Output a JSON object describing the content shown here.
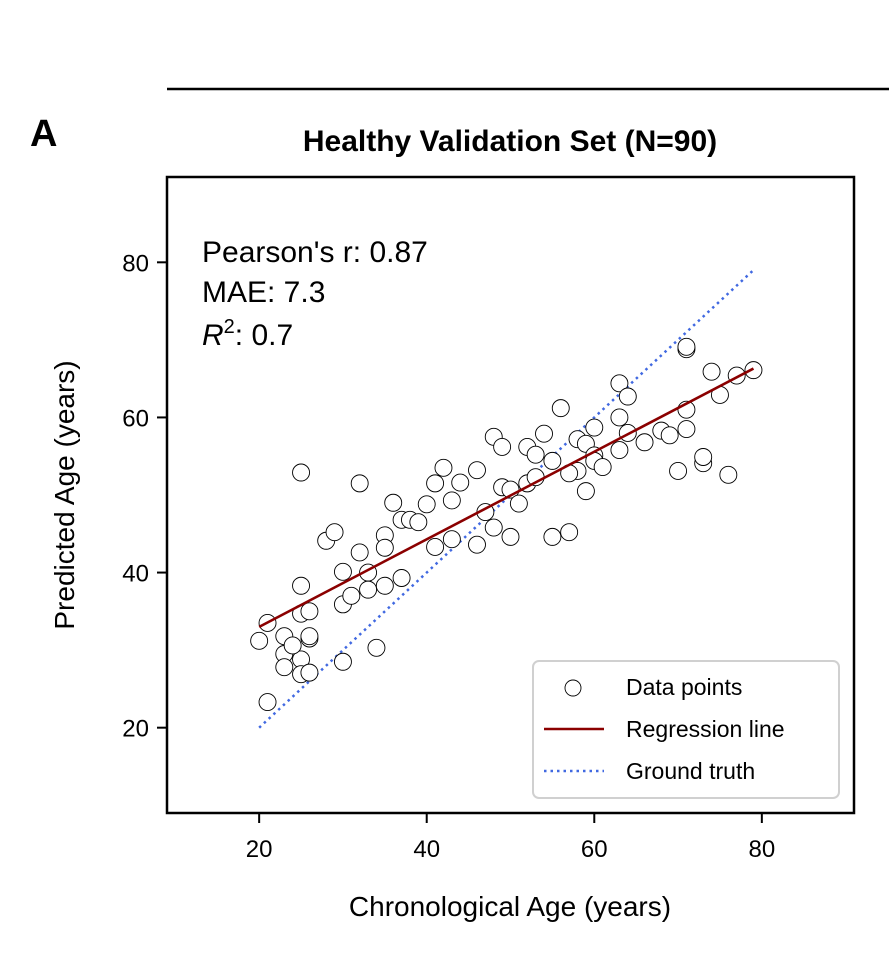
{
  "panel_label": "A",
  "chart_data": {
    "type": "scatter",
    "title": "Healthy Validation Set (N=90)",
    "xlabel": "Chronological Age (years)",
    "ylabel": "Predicted Age (years)",
    "xlim": [
      9,
      91
    ],
    "ylim": [
      9,
      91
    ],
    "xticks": [
      20,
      40,
      60,
      80
    ],
    "yticks": [
      20,
      40,
      60,
      80
    ],
    "grid": false,
    "legend_position": "lower-right",
    "annotations": {
      "pearson": "Pearson's r: 0.87",
      "mae": "MAE: 7.3",
      "r2_symbol": "R",
      "r2_exp": "2",
      "r2_value": ": 0.7"
    },
    "legend": [
      {
        "label": "Data points",
        "kind": "marker"
      },
      {
        "label": "Regression line",
        "kind": "line",
        "color": "#8b0000"
      },
      {
        "label": "Ground truth",
        "kind": "dotted",
        "color": "#4169e1"
      }
    ],
    "regression_line": {
      "x": [
        20,
        79
      ],
      "y": [
        33.0,
        66.3
      ],
      "color": "#8b0000"
    },
    "ground_truth": {
      "x": [
        20,
        79
      ],
      "y": [
        20,
        79
      ],
      "color": "#4169e1"
    },
    "series": [
      {
        "name": "Data points",
        "points": [
          [
            20.0,
            31.2
          ],
          [
            21.0,
            33.5
          ],
          [
            21.0,
            23.3
          ],
          [
            23.0,
            31.8
          ],
          [
            23.0,
            29.5
          ],
          [
            23.0,
            27.8
          ],
          [
            25.0,
            52.9
          ],
          [
            25.0,
            38.3
          ],
          [
            25.0,
            34.7
          ],
          [
            25.0,
            28.8
          ],
          [
            25.0,
            26.9
          ],
          [
            26.0,
            35.0
          ],
          [
            26.0,
            31.5
          ],
          [
            26.0,
            31.8
          ],
          [
            26.0,
            27.1
          ],
          [
            28.0,
            44.1
          ],
          [
            29.0,
            45.2
          ],
          [
            30.0,
            40.1
          ],
          [
            30.0,
            35.9
          ],
          [
            30.0,
            28.5
          ],
          [
            31.0,
            37.0
          ],
          [
            32.0,
            51.5
          ],
          [
            32.0,
            42.6
          ],
          [
            33.0,
            40.0
          ],
          [
            33.0,
            37.8
          ],
          [
            34.0,
            30.3
          ],
          [
            35.0,
            44.8
          ],
          [
            35.0,
            43.2
          ],
          [
            35.0,
            38.3
          ],
          [
            36.0,
            49.0
          ],
          [
            37.0,
            46.8
          ],
          [
            37.0,
            39.3
          ],
          [
            38.0,
            46.8
          ],
          [
            39.0,
            46.5
          ],
          [
            40.0,
            48.8
          ],
          [
            41.0,
            51.5
          ],
          [
            41.0,
            43.3
          ],
          [
            42.0,
            53.5
          ],
          [
            43.0,
            49.3
          ],
          [
            43.0,
            44.3
          ],
          [
            44.0,
            51.6
          ],
          [
            46.0,
            53.2
          ],
          [
            46.0,
            43.6
          ],
          [
            48.0,
            57.5
          ],
          [
            48.0,
            45.8
          ],
          [
            49.0,
            56.2
          ],
          [
            49.0,
            51.0
          ],
          [
            50.0,
            50.7
          ],
          [
            50.0,
            44.6
          ],
          [
            51.0,
            48.9
          ],
          [
            52.0,
            56.2
          ],
          [
            52.0,
            51.5
          ],
          [
            53.0,
            55.2
          ],
          [
            53.0,
            52.3
          ],
          [
            54.0,
            57.9
          ],
          [
            55.0,
            54.4
          ],
          [
            55.0,
            44.6
          ],
          [
            56.0,
            61.2
          ],
          [
            57.0,
            45.2
          ],
          [
            58.0,
            57.2
          ],
          [
            58.0,
            53.1
          ],
          [
            59.0,
            56.6
          ],
          [
            59.0,
            50.5
          ],
          [
            60.0,
            58.7
          ],
          [
            60.0,
            55.1
          ],
          [
            60.0,
            54.4
          ],
          [
            61.0,
            53.6
          ],
          [
            63.0,
            64.4
          ],
          [
            63.0,
            60.0
          ],
          [
            63.0,
            55.8
          ],
          [
            64.0,
            62.7
          ],
          [
            64.0,
            58.0
          ],
          [
            66.0,
            56.8
          ],
          [
            68.0,
            58.3
          ],
          [
            69.0,
            57.7
          ],
          [
            70.0,
            53.1
          ],
          [
            71.0,
            68.8
          ],
          [
            71.0,
            69.1
          ],
          [
            71.0,
            61.0
          ],
          [
            71.0,
            58.5
          ],
          [
            73.0,
            54.1
          ],
          [
            73.0,
            54.9
          ],
          [
            74.0,
            65.9
          ],
          [
            75.0,
            62.9
          ],
          [
            76.0,
            52.6
          ],
          [
            77.0,
            65.4
          ],
          [
            79.0,
            66.1
          ],
          [
            24.0,
            30.6
          ],
          [
            57.0,
            52.8
          ],
          [
            47.0,
            47.8
          ]
        ]
      }
    ]
  }
}
